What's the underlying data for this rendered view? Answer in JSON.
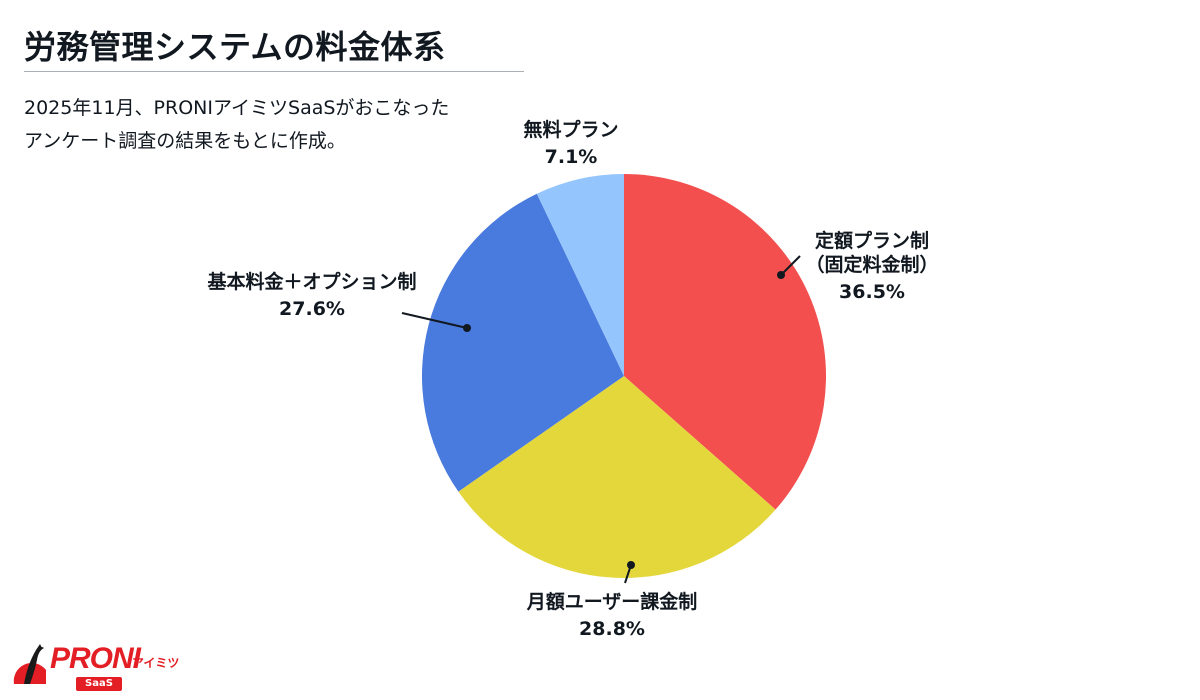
{
  "header": {
    "title": "労務管理システムの料金体系",
    "subtitle_line1": "2025年11月、PRONIアイミツSaaSがおこなった",
    "subtitle_line2": "アンケート調査の結果をもとに作成。"
  },
  "labels": {
    "fixed": {
      "line1": "定額プラン制",
      "line2": "（固定料金制）",
      "pct": "36.5%"
    },
    "monthly_user": {
      "line1": "月額ユーザー課金制",
      "pct": "28.8%"
    },
    "base_option": {
      "line1": "基本料金＋オプション制",
      "pct": "27.6%"
    },
    "free": {
      "line1": "無料プラン",
      "pct": "7.1%"
    }
  },
  "logo": {
    "brand": "PRONI",
    "kana": "アイミツ",
    "badge": "SaaS",
    "icon": "penguin-icon",
    "color": "#e31e24"
  },
  "chart_data": {
    "type": "pie",
    "title": "労務管理システムの料金体系",
    "subtitle": "2025年11月、PRONIアイミツSaaSがおこなったアンケート調査の結果をもとに作成。",
    "start_angle": "12 o'clock, clockwise",
    "categories": [
      "定額プラン制（固定料金制）",
      "月額ユーザー課金制",
      "基本料金＋オプション制",
      "無料プラン"
    ],
    "values": [
      36.5,
      28.8,
      27.6,
      7.1
    ],
    "unit": "%",
    "colors": [
      "#f34f4f",
      "#e4d73c",
      "#497add",
      "#94c6fd"
    ],
    "legend": "none (callout labels)"
  }
}
